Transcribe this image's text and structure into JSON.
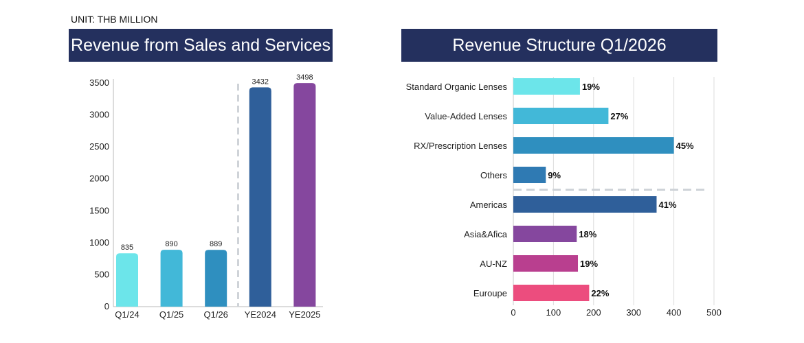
{
  "unit_label": "UNIT: THB MILLION",
  "chart_data": [
    {
      "type": "bar",
      "orientation": "vertical",
      "title": "Revenue from Sales and Services",
      "categories": [
        "Q1/24",
        "Q1/25",
        "Q1/26",
        "YE2024",
        "YE2025"
      ],
      "values": [
        835,
        890,
        889,
        3432,
        3498
      ],
      "data_labels": [
        "835",
        "890",
        "889",
        "3432",
        "3498"
      ],
      "colors": [
        "#6ce5ea",
        "#42b8d8",
        "#2f8fbf",
        "#2f5f9a",
        "#85479e"
      ],
      "ylim": [
        0,
        3500
      ],
      "yticks": [
        "0",
        "500",
        "1000",
        "1500",
        "2000",
        "2500",
        "3000",
        "3500"
      ],
      "separator_after_index": 2,
      "grid": false
    },
    {
      "type": "bar",
      "orientation": "horizontal",
      "title": "Revenue Structure Q1/2026",
      "categories": [
        "Standard Organic Lenses",
        "Value-Added Lenses",
        "RX/Prescription Lenses",
        "Others",
        "Americas",
        "Asia&Afica",
        "AU-NZ",
        "Euroupe"
      ],
      "values": [
        166,
        237,
        400,
        81,
        357,
        158,
        161,
        189
      ],
      "data_labels": [
        "19%",
        "27%",
        "45%",
        "9%",
        "41%",
        "18%",
        "19%",
        "22%"
      ],
      "colors": [
        "#6ce5ea",
        "#42b8d8",
        "#2f8fbf",
        "#2f7ab3",
        "#2f5f9a",
        "#85479e",
        "#b93f8f",
        "#ec4d7e"
      ],
      "xlim": [
        0,
        500
      ],
      "xticks": [
        "0",
        "100",
        "200",
        "300",
        "400",
        "500"
      ],
      "separator_after_index": 3,
      "grid": true
    }
  ]
}
